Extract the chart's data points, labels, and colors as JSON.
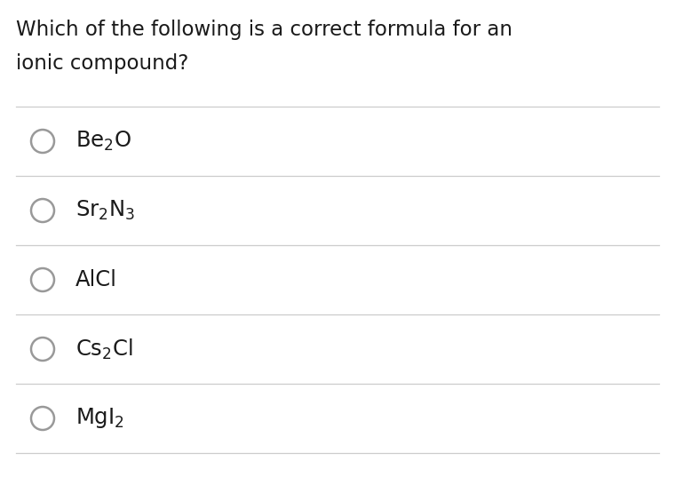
{
  "title_line1": "Which of the following is a correct formula for an",
  "title_line2": "ionic compound?",
  "options": [
    {
      "label": "Be$_2$O"
    },
    {
      "label": "Sr$_2$N$_3$"
    },
    {
      "label": "AlCl"
    },
    {
      "label": "Cs$_2$Cl"
    },
    {
      "label": "MgI$_2$"
    }
  ],
  "background_color": "#ffffff",
  "text_color": "#1a1a1a",
  "circle_color": "#999999",
  "line_color": "#cccccc",
  "title_fontsize": 16.5,
  "option_fontsize": 17.5
}
